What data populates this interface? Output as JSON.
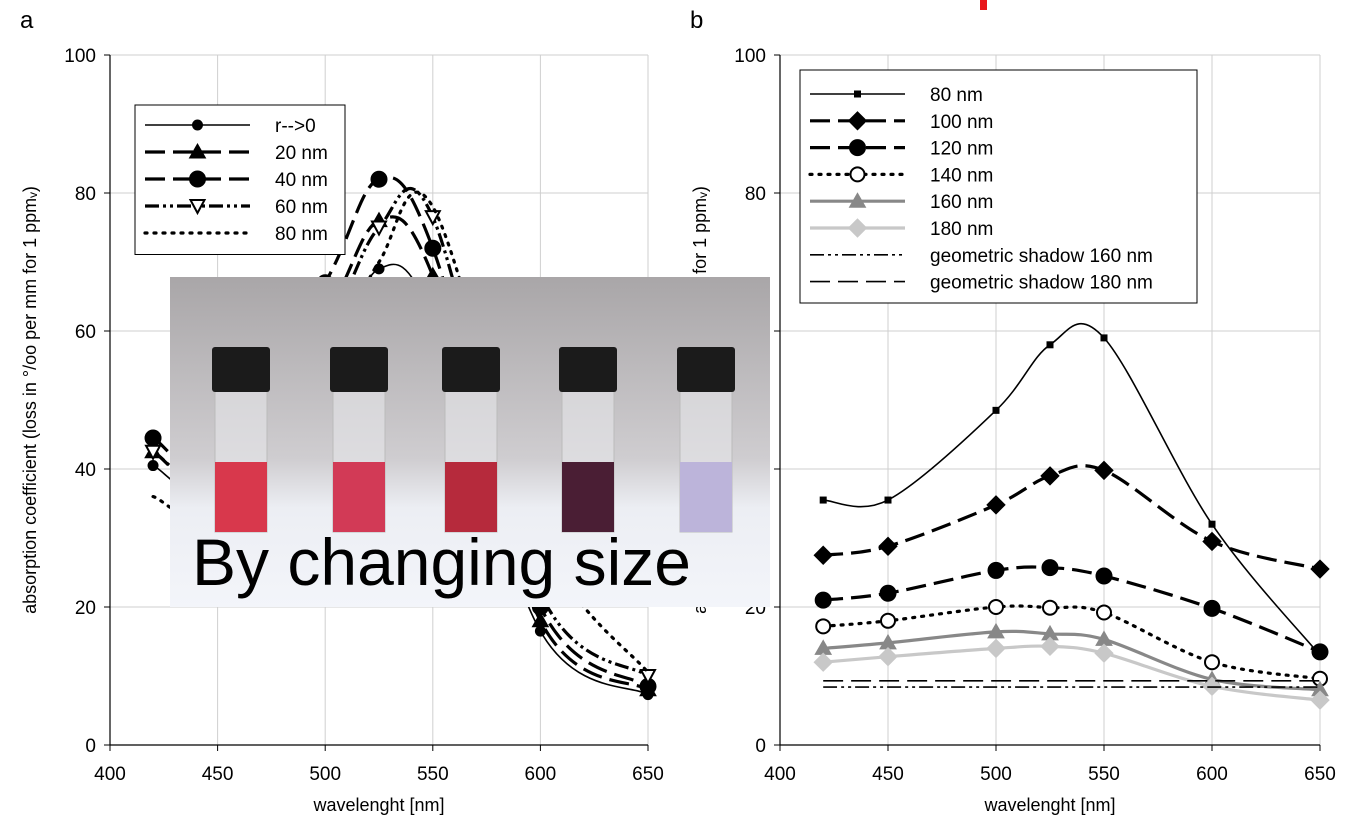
{
  "chart_data": [
    {
      "type": "line",
      "panel": "a",
      "xlabel": "wavelenght [nm]",
      "ylabel": "absorption coefficient (loss in °/oo per mm for 1 ppmᵥ)",
      "x": [
        420,
        450,
        500,
        525,
        550,
        600,
        650
      ],
      "xlim": [
        400,
        650
      ],
      "xticks": [
        400,
        450,
        500,
        550,
        600,
        650
      ],
      "ylim": [
        0,
        100
      ],
      "yticks": [
        0,
        20,
        40,
        60,
        80,
        100
      ],
      "grid": true,
      "legend": "upper left",
      "series": [
        {
          "name": "r-->0",
          "color": "#000000",
          "dash": "solid",
          "linewidth": "thin",
          "marker": "circle",
          "values": [
            40.5,
            37,
            55,
            69,
            62,
            16.5,
            7.3
          ]
        },
        {
          "name": "20 nm",
          "color": "#000000",
          "dash": "dashed",
          "linewidth": "thick",
          "marker": "triangle",
          "values": [
            42.5,
            39,
            62,
            76,
            68,
            18,
            8
          ]
        },
        {
          "name": "40 nm",
          "color": "#000000",
          "dash": "dashed",
          "linewidth": "thick",
          "marker": "big-circle",
          "values": [
            44.5,
            41,
            67,
            82,
            72,
            20,
            8.5
          ]
        },
        {
          "name": "60 nm",
          "color": "#000000",
          "dash": "dashdotdot",
          "linewidth": "thick",
          "marker": "open-triangle-down",
          "values": [
            42.5,
            39,
            60,
            75,
            76.5,
            22,
            10
          ]
        },
        {
          "name": "80 nm",
          "color": "#000000",
          "dash": "dotted",
          "linewidth": "thick",
          "marker": "none",
          "values": [
            36,
            34,
            55,
            70,
            78,
            30,
            10.5
          ]
        }
      ]
    },
    {
      "type": "line",
      "panel": "b",
      "xlabel": "wavelenght [nm]",
      "ylabel": "absorption coefficient (loss in °/oo per mm for 1 ppmᵥ)",
      "x": [
        420,
        450,
        500,
        525,
        550,
        600,
        650
      ],
      "xlim": [
        400,
        650
      ],
      "xticks": [
        400,
        450,
        500,
        550,
        600,
        650
      ],
      "ylim": [
        0,
        100
      ],
      "yticks": [
        0,
        20,
        40,
        60,
        80,
        100
      ],
      "grid": true,
      "legend": "upper left",
      "series": [
        {
          "name": "80 nm",
          "color": "#000000",
          "dash": "solid",
          "linewidth": "thin",
          "marker": "square",
          "values": [
            35.5,
            35.5,
            48.5,
            58,
            59,
            32,
            13
          ]
        },
        {
          "name": "100 nm",
          "color": "#000000",
          "dash": "dashed",
          "linewidth": "thick",
          "marker": "diamond",
          "values": [
            27.5,
            28.8,
            34.8,
            39,
            39.8,
            29.5,
            25.5
          ]
        },
        {
          "name": "120 nm",
          "color": "#000000",
          "dash": "dashed",
          "linewidth": "thick",
          "marker": "big-circle",
          "values": [
            21,
            22,
            25.3,
            25.7,
            24.5,
            19.8,
            13.5
          ]
        },
        {
          "name": "140 nm",
          "color": "#000000",
          "dash": "dotted",
          "linewidth": "thick",
          "marker": "open-circle",
          "values": [
            17.2,
            18,
            20,
            19.9,
            19.2,
            12,
            9.6
          ]
        },
        {
          "name": "160 nm",
          "color": "#888888",
          "dash": "solid",
          "linewidth": "thick",
          "marker": "triangle",
          "values": [
            14,
            14.8,
            16.4,
            16.1,
            15.3,
            9.5,
            8
          ]
        },
        {
          "name": "180 nm",
          "color": "#c8c8c8",
          "dash": "solid",
          "linewidth": "thick",
          "marker": "diamond",
          "values": [
            12,
            12.8,
            14,
            14.3,
            13.3,
            8.5,
            6.5
          ]
        },
        {
          "name": "geometric shadow 160 nm",
          "color": "#000000",
          "dash": "dashdotdot",
          "linewidth": "thin",
          "marker": "none",
          "x": [
            420,
            650
          ],
          "values": [
            8.4,
            8.4
          ]
        },
        {
          "name": "geometric shadow 180 nm",
          "color": "#000000",
          "dash": "dashed",
          "linewidth": "thin",
          "marker": "none",
          "x": [
            420,
            650
          ],
          "values": [
            9.3,
            9.3
          ]
        }
      ]
    }
  ],
  "overlay": {
    "caption": "By changing size"
  }
}
